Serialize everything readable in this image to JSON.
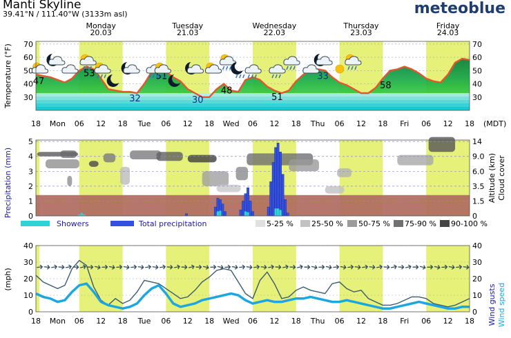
{
  "header": {
    "title": "Manti Skyline",
    "coords": "39.41°N / 111.40°W (3133m asl)",
    "brand": "meteoblue"
  },
  "colors": {
    "daylight": "#e6f17a",
    "temp_line": "#e4572e",
    "precip_total": "#3350e0",
    "showers": "#2fd3d3",
    "wind_speed": "#1ca7e0",
    "wind_gust": "#3b5a6e",
    "low_cloud": "#b06a60"
  },
  "chart_data": [
    {
      "type": "area",
      "name": "temperature",
      "ylabel": "Temperature (°F)",
      "ylim": [
        20,
        70
      ],
      "y_ticks": [
        "70",
        "60",
        "50",
        "40",
        "30"
      ],
      "x_hours": [
        0,
        6,
        12,
        18,
        24,
        30,
        36,
        42,
        48,
        54,
        60,
        66,
        72,
        78,
        84,
        90,
        96,
        102,
        108,
        114,
        120,
        126,
        132,
        138,
        144,
        150,
        156,
        162,
        168,
        174,
        180,
        186,
        192,
        198,
        204,
        210,
        216,
        222,
        228,
        234,
        240,
        246,
        252,
        258,
        264,
        270,
        276,
        282,
        288,
        294,
        300,
        306,
        312,
        318,
        324,
        330,
        336,
        342,
        348,
        354,
        360
      ],
      "temp_f": [
        47,
        46,
        45,
        43,
        41,
        44,
        50,
        53,
        51,
        44,
        36,
        35,
        34,
        34,
        33,
        40,
        49,
        51,
        49,
        45,
        42,
        36,
        33,
        30,
        30,
        36,
        40,
        35,
        34,
        43,
        45,
        43,
        38,
        35,
        33,
        35,
        42,
        47,
        50,
        51,
        50,
        45,
        41,
        39,
        36,
        33,
        33,
        37,
        44,
        50,
        51,
        53,
        51,
        48,
        44,
        42,
        41,
        47,
        56,
        59,
        58
      ],
      "labels": [
        {
          "text": "47",
          "hour": 0
        },
        {
          "text": "53",
          "hour": 42
        },
        {
          "text": "32",
          "hour": 80
        },
        {
          "text": "51",
          "hour": 102
        },
        {
          "text": "30",
          "hour": 132
        },
        {
          "text": "48",
          "hour": 156
        },
        {
          "text": "51",
          "hour": 198
        },
        {
          "text": "33",
          "hour": 236
        },
        {
          "text": "58",
          "hour": 288
        }
      ],
      "icons": [
        {
          "kind": "sun-cloud",
          "hour": 2
        },
        {
          "kind": "moon-cloud",
          "hour": 16
        },
        {
          "kind": "cloud",
          "hour": 27
        },
        {
          "kind": "sun-cloud-rain",
          "hour": 42
        },
        {
          "kind": "sun-cloud-rain",
          "hour": 54
        },
        {
          "kind": "moon",
          "hour": 66
        },
        {
          "kind": "moon-cloud",
          "hour": 78
        },
        {
          "kind": "cloud-rain",
          "hour": 97
        },
        {
          "kind": "sun-cloud-rain",
          "hour": 104
        },
        {
          "kind": "moon",
          "hour": 117
        },
        {
          "kind": "moon-cloud",
          "hour": 131
        },
        {
          "kind": "sun-cloud",
          "hour": 146
        },
        {
          "kind": "sun-cloud-rain",
          "hour": 158
        },
        {
          "kind": "moon-rain",
          "hour": 169
        },
        {
          "kind": "cloud-rain",
          "hour": 179
        },
        {
          "kind": "cloud-rain",
          "hour": 199
        },
        {
          "kind": "cloud-rain",
          "hour": 211
        },
        {
          "kind": "cloud",
          "hour": 227
        },
        {
          "kind": "moon-cloud",
          "hour": 238
        },
        {
          "kind": "sun",
          "hour": 251
        },
        {
          "kind": "sun-cloud-rain",
          "hour": 262
        }
      ]
    },
    {
      "type": "area",
      "name": "precipitation_cloud",
      "ylabel": "Precipitation (mm)",
      "right_label_1": "Altitude (km)",
      "right_label_2": "Cloud cover",
      "y_ticks_left": [
        "5",
        "4",
        "3",
        "2",
        "1",
        "0"
      ],
      "y_ticks_right": [
        "14",
        "9.0",
        "6.0",
        "3.5",
        "1.5",
        "0"
      ],
      "total_precip": [
        {
          "hour": 125,
          "mm": 0.15
        },
        {
          "hour": 149,
          "mm": 0.6
        },
        {
          "hour": 151,
          "mm": 1.2
        },
        {
          "hour": 153,
          "mm": 1.1
        },
        {
          "hour": 155,
          "mm": 0.8
        },
        {
          "hour": 157,
          "mm": 0.3
        },
        {
          "hour": 170,
          "mm": 0.4
        },
        {
          "hour": 172,
          "mm": 1.0
        },
        {
          "hour": 174,
          "mm": 1.5
        },
        {
          "hour": 176,
          "mm": 1.9
        },
        {
          "hour": 178,
          "mm": 1.0
        },
        {
          "hour": 180,
          "mm": 0.3
        },
        {
          "hour": 193,
          "mm": 0.6
        },
        {
          "hour": 195,
          "mm": 2.3
        },
        {
          "hour": 197,
          "mm": 3.6
        },
        {
          "hour": 199,
          "mm": 4.6
        },
        {
          "hour": 201,
          "mm": 4.9
        },
        {
          "hour": 203,
          "mm": 4.3
        },
        {
          "hour": 205,
          "mm": 2.8
        },
        {
          "hour": 207,
          "mm": 1.1
        },
        {
          "hour": 209,
          "mm": 0.2
        }
      ],
      "showers": [
        {
          "hour": 36,
          "mm": 0.1
        },
        {
          "hour": 38,
          "mm": 0.2
        },
        {
          "hour": 40,
          "mm": 0.1
        },
        {
          "hour": 151,
          "mm": 0.3
        },
        {
          "hour": 153,
          "mm": 0.35
        },
        {
          "hour": 174,
          "mm": 0.3
        },
        {
          "hour": 176,
          "mm": 0.25
        },
        {
          "hour": 199,
          "mm": 0.5
        },
        {
          "hour": 201,
          "mm": 0.5
        },
        {
          "hour": 203,
          "mm": 0.4
        }
      ],
      "legend": {
        "showers": "Showers",
        "total": "Total precipitation",
        "c1": "5-25 %",
        "c2": "25-50 %",
        "c3": "50-75 %",
        "c4": "75-90 %",
        "c5": "90-100 %"
      }
    },
    {
      "type": "line",
      "name": "wind",
      "ylabel": "(mph)",
      "ylim": [
        0,
        40
      ],
      "y_ticks": [
        "40",
        "30",
        "20",
        "10",
        "0"
      ],
      "right_label_1": "Wind gusts",
      "right_label_2": "Wind speed",
      "wind_speed": [
        11,
        9,
        8,
        6,
        7,
        12,
        16,
        17,
        12,
        6,
        4,
        3,
        2,
        3,
        5,
        10,
        14,
        16,
        11,
        5,
        3,
        4,
        5,
        7,
        8,
        9,
        10,
        11,
        10,
        7,
        5,
        6,
        7,
        6,
        6,
        7,
        8,
        8,
        9,
        8,
        7,
        6,
        6,
        7,
        6,
        5,
        4,
        3,
        2,
        2,
        3,
        4,
        5,
        6,
        5,
        4,
        3,
        2,
        2,
        3,
        3
      ],
      "wind_gust": [
        22,
        18,
        16,
        14,
        16,
        26,
        31,
        28,
        15,
        7,
        4,
        8,
        5,
        7,
        12,
        19,
        18,
        17,
        14,
        11,
        8,
        9,
        13,
        18,
        21,
        25,
        26,
        25,
        18,
        11,
        8,
        19,
        24,
        17,
        8,
        9,
        13,
        15,
        13,
        12,
        11,
        17,
        18,
        14,
        12,
        13,
        8,
        6,
        4,
        4,
        5,
        7,
        9,
        9,
        8,
        5,
        4,
        3,
        4,
        6,
        8
      ],
      "arrow_row": ">>>>>>>>>>>>>>>>>>>>>>>>>>>>>>>>>>>>>>>>>>>>>>>>>>>>>>>>>>>>>"
    }
  ],
  "axis": {
    "x_labels": [
      {
        "text": "18",
        "hour": 0
      },
      {
        "text": "Mon",
        "hour": 6
      },
      {
        "text": "06",
        "hour": 12
      },
      {
        "text": "12",
        "hour": 18
      },
      {
        "text": "18",
        "hour": 24
      },
      {
        "text": "Tue",
        "hour": 30
      },
      {
        "text": "06",
        "hour": 36
      },
      {
        "text": "12",
        "hour": 42
      },
      {
        "text": "18",
        "hour": 48
      },
      {
        "text": "Wed",
        "hour": 54
      },
      {
        "text": "06",
        "hour": 60
      },
      {
        "text": "12",
        "hour": 66
      },
      {
        "text": "18",
        "hour": 72
      },
      {
        "text": "Thu",
        "hour": 78
      },
      {
        "text": "06",
        "hour": 84
      },
      {
        "text": "12",
        "hour": 90
      },
      {
        "text": "18",
        "hour": 96
      },
      {
        "text": "Fri",
        "hour": 102
      },
      {
        "text": "06",
        "hour": 108
      },
      {
        "text": "12",
        "hour": 114
      },
      {
        "text": "18",
        "hour": 120
      }
    ],
    "unit": "(MDT)",
    "days": [
      {
        "name": "Monday",
        "date": "20.03",
        "hour": 18
      },
      {
        "name": "Tuesday",
        "date": "21.03",
        "hour": 42
      },
      {
        "name": "Wednesday",
        "date": "22.03",
        "hour": 66
      },
      {
        "name": "Thursday",
        "date": "23.03",
        "hour": 90
      },
      {
        "name": "Friday",
        "date": "24.03",
        "hour": 114
      }
    ],
    "daylight_hours": [
      [
        0,
        1
      ],
      [
        12,
        24
      ],
      [
        36,
        48
      ],
      [
        60,
        72
      ],
      [
        84,
        96
      ],
      [
        108,
        120
      ]
    ]
  }
}
